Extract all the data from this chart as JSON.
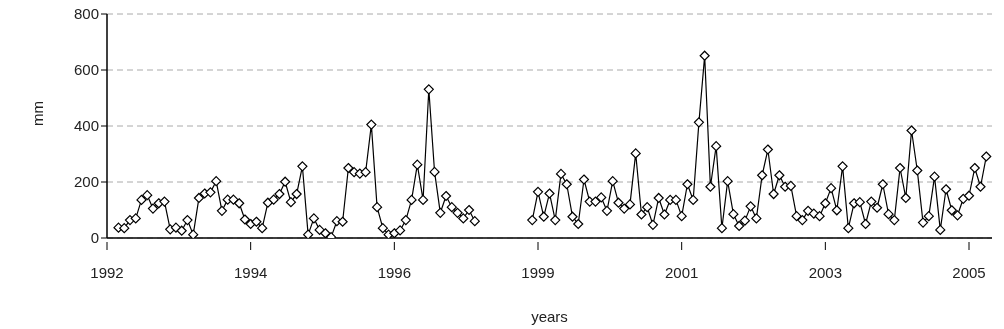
{
  "chart_data": {
    "type": "line",
    "xlabel": "years",
    "ylabel": "mm",
    "categories": [
      "1992",
      null,
      null,
      null,
      null,
      null,
      null,
      null,
      null,
      null,
      null,
      null,
      null,
      null,
      null,
      null,
      null,
      null,
      null,
      null,
      null,
      null,
      null,
      null,
      null,
      "1994",
      null,
      null,
      null,
      null,
      null,
      null,
      null,
      null,
      null,
      null,
      null,
      null,
      null,
      null,
      null,
      null,
      null,
      null,
      null,
      null,
      null,
      null,
      null,
      null,
      "1996",
      null,
      null,
      null,
      null,
      null,
      null,
      null,
      null,
      null,
      null,
      null,
      null,
      null,
      null,
      null,
      null,
      null,
      null,
      null,
      null,
      null,
      null,
      null,
      null,
      "1999",
      null,
      null,
      null,
      null,
      null,
      null,
      null,
      null,
      null,
      null,
      null,
      null,
      null,
      null,
      null,
      null,
      null,
      null,
      null,
      null,
      null,
      null,
      null,
      null,
      "2001",
      null,
      null,
      null,
      null,
      null,
      null,
      null,
      null,
      null,
      null,
      null,
      null,
      null,
      null,
      null,
      null,
      null,
      null,
      null,
      null,
      null,
      null,
      null,
      null,
      "2003",
      null,
      null,
      null,
      null,
      null,
      null,
      null,
      null,
      null,
      null,
      null,
      null,
      null,
      null,
      null,
      null,
      null,
      null,
      null,
      null,
      null,
      null,
      null,
      null,
      "2005",
      null,
      null,
      null,
      null
    ],
    "series": [
      {
        "color": "#000000",
        "values": [
          null,
          null,
          37,
          35,
          64,
          70,
          136,
          153,
          105,
          124,
          130,
          31,
          37,
          26,
          64,
          12,
          143,
          159,
          163,
          203,
          97,
          137,
          137,
          124,
          66,
          50,
          58,
          35,
          126,
          137,
          157,
          201,
          128,
          157,
          256,
          12,
          70,
          29,
          17,
          3,
          60,
          58,
          250,
          235,
          230,
          235,
          405,
          110,
          35,
          12,
          17,
          27,
          64,
          136,
          262,
          136,
          531,
          236,
          90,
          150,
          110,
          90,
          70,
          100,
          60,
          null,
          null,
          null,
          null,
          null,
          null,
          null,
          null,
          null,
          64,
          165,
          76,
          159,
          64,
          229,
          192,
          76,
          50,
          209,
          130,
          130,
          145,
          97,
          203,
          126,
          105,
          120,
          302,
          84,
          110,
          47,
          143,
          84,
          136,
          136,
          78,
          192,
          136,
          413,
          651,
          183,
          328,
          35,
          203,
          85,
          43,
          62,
          113,
          70,
          224,
          316,
          157,
          224,
          183,
          186,
          78,
          64,
          97,
          87,
          78,
          124,
          178,
          99,
          256,
          35,
          124,
          128,
          50,
          130,
          108,
          192,
          85,
          64,
          250,
          143,
          384,
          241,
          55,
          78,
          219,
          29,
          174,
          99,
          81,
          140,
          151,
          250,
          183,
          291,
          null
        ]
      }
    ],
    "ylim": [
      0,
      800
    ],
    "yticks": [
      0,
      200,
      400,
      600,
      800
    ],
    "grid": "y",
    "marker": "diamond",
    "line_style": "solid"
  }
}
